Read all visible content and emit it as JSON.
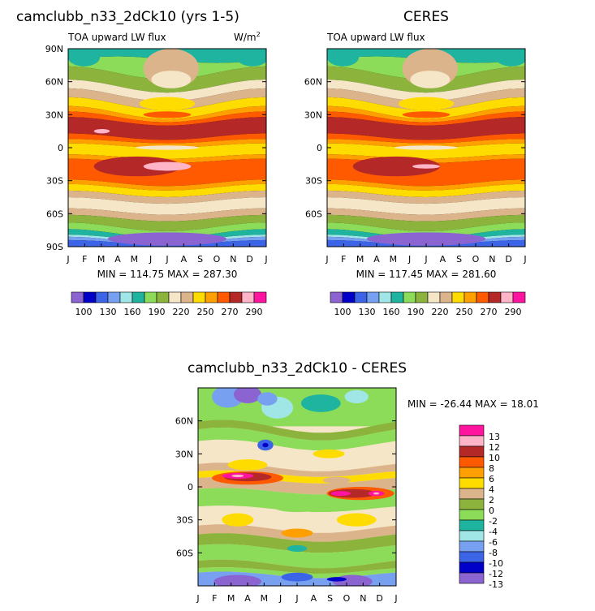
{
  "palette": {
    "c1": "#8c64d2",
    "c2": "#0000c8",
    "c3": "#3c64e6",
    "c4": "#78a0f0",
    "c5": "#a0e6e6",
    "c6": "#1eb4a0",
    "c7": "#8cdc5a",
    "c8": "#8cb43c",
    "c9": "#f5e6c8",
    "c10": "#dcb48c",
    "c11": "#ffdc00",
    "c12": "#ffa000",
    "c13": "#ff5a00",
    "c14": "#b42828",
    "c15": "#ffb4c8",
    "c16": "#ff14a0"
  },
  "months": [
    "J",
    "F",
    "M",
    "A",
    "M",
    "J",
    "J",
    "A",
    "S",
    "O",
    "N",
    "D",
    "J"
  ],
  "chart_data": [
    {
      "id": "model",
      "type": "contour",
      "title": "camclubb_n33_2dCk10 (yrs 1-5)",
      "left_label": "TOA upward LW flux",
      "right_label": "W/m",
      "right_label_sup": "2",
      "xlabels": [
        "J",
        "F",
        "M",
        "A",
        "M",
        "J",
        "J",
        "A",
        "S",
        "O",
        "N",
        "D",
        "J"
      ],
      "ylabels": [
        "90N",
        "60N",
        "30N",
        "0",
        "30S",
        "60S",
        "90S"
      ],
      "ylim": [
        -90,
        90
      ],
      "stats": "MIN = 114.75 MAX = 287.30",
      "levels": [
        100,
        110,
        120,
        130,
        140,
        160,
        180,
        190,
        200,
        220,
        240,
        250,
        260,
        270,
        280,
        290
      ],
      "colorbar_labels": [
        "100",
        "130",
        "160",
        "190",
        "220",
        "250",
        "270",
        "290"
      ]
    },
    {
      "id": "obs",
      "type": "contour",
      "title": "CERES",
      "left_label": "TOA upward LW flux",
      "xlabels": [
        "J",
        "F",
        "M",
        "A",
        "M",
        "J",
        "J",
        "A",
        "S",
        "O",
        "N",
        "D",
        "J"
      ],
      "ylabels": [
        "60N",
        "30N",
        "0",
        "30S",
        "60S"
      ],
      "ylim": [
        -90,
        90
      ],
      "stats": "MIN = 117.45 MAX = 281.60",
      "levels": [
        100,
        110,
        120,
        130,
        140,
        160,
        180,
        190,
        200,
        220,
        240,
        250,
        260,
        270,
        280,
        290
      ],
      "colorbar_labels": [
        "100",
        "130",
        "160",
        "190",
        "220",
        "250",
        "270",
        "290"
      ]
    },
    {
      "id": "diff",
      "type": "contour",
      "title": "camclubb_n33_2dCk10 - CERES",
      "xlabels": [
        "J",
        "F",
        "M",
        "A",
        "M",
        "J",
        "J",
        "A",
        "S",
        "O",
        "N",
        "D",
        "J"
      ],
      "ylabels": [
        "60N",
        "30N",
        "0",
        "30S",
        "60S"
      ],
      "ylim": [
        -90,
        90
      ],
      "stats": "MIN = -26.44 MAX =  18.01",
      "colorbar_labels": [
        "13",
        "12",
        "10",
        "8",
        "6",
        "4",
        "2",
        "0",
        "-2",
        "-4",
        "-6",
        "-8",
        "-10",
        "-12",
        "-13"
      ]
    }
  ]
}
